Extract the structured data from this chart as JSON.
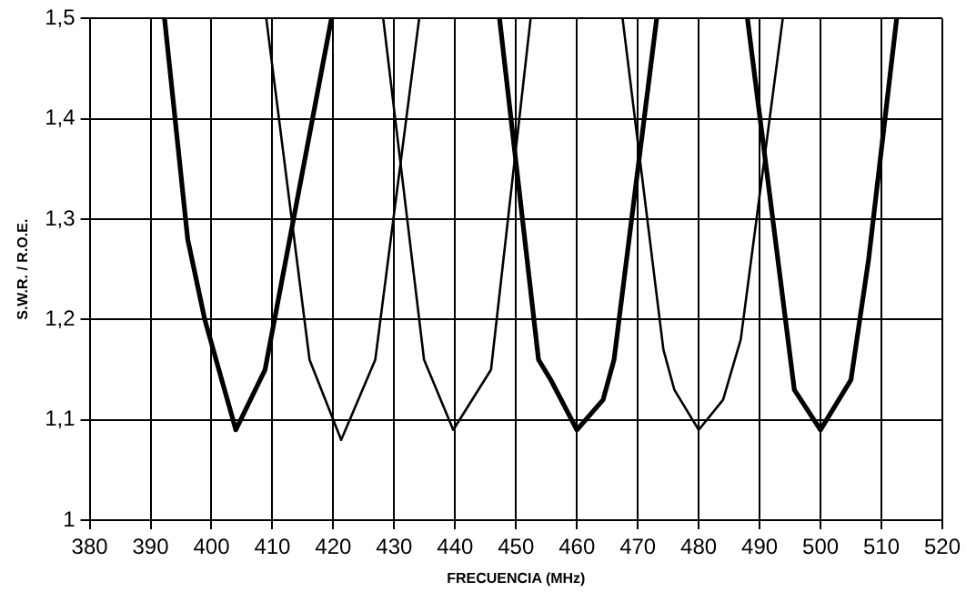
{
  "chart_data": {
    "type": "line",
    "xlabel": "FRECUENCIA (MHz)",
    "ylabel": "S.W.R. / R.O.E.",
    "xlim": [
      380,
      520
    ],
    "xticks": [
      380,
      390,
      400,
      410,
      420,
      430,
      440,
      450,
      460,
      470,
      480,
      490,
      500,
      510,
      520
    ],
    "ylim": [
      1,
      1.5
    ],
    "yticks": [
      {
        "value": 1,
        "label": "1"
      },
      {
        "value": 1.1,
        "label": "1,1"
      },
      {
        "value": 1.2,
        "label": "1,2"
      },
      {
        "value": 1.3,
        "label": "1,3"
      },
      {
        "value": 1.4,
        "label": "1,4"
      },
      {
        "value": 1.5,
        "label": "1,5"
      }
    ],
    "grid": true,
    "legend": false,
    "marker": "none",
    "line_style": "solid",
    "series": [
      {
        "color": "#000000",
        "x": [
          392.3,
          396.1,
          398.9,
          404.0,
          408.8,
          419.7
        ],
        "values": [
          1.5,
          1.28,
          1.2,
          1.09,
          1.15,
          1.5
        ]
      },
      {
        "color": "#000000",
        "x": [
          409.0,
          416.1,
          421.3,
          426.9,
          434.1
        ],
        "values": [
          1.5,
          1.16,
          1.08,
          1.16,
          1.5
        ]
      },
      {
        "color": "#000000",
        "x": [
          428.2,
          434.9,
          439.7,
          445.9,
          452.4
        ],
        "values": [
          1.5,
          1.16,
          1.09,
          1.15,
          1.5
        ]
      },
      {
        "color": "#000000",
        "x": [
          447.3,
          453.7,
          455.7,
          460.0,
          464.3,
          466.1,
          473.1
        ],
        "values": [
          1.5,
          1.16,
          1.14,
          1.09,
          1.12,
          1.16,
          1.5
        ]
      },
      {
        "color": "#000000",
        "x": [
          467.5,
          474.2,
          476.0,
          480.0,
          484.0,
          486.9,
          493.8
        ],
        "values": [
          1.5,
          1.17,
          1.13,
          1.09,
          1.12,
          1.18,
          1.5
        ]
      },
      {
        "color": "#000000",
        "x": [
          488.0,
          495.7,
          500.0,
          505.0,
          507.9,
          512.5
        ],
        "values": [
          1.5,
          1.13,
          1.09,
          1.14,
          1.26,
          1.5
        ]
      }
    ]
  }
}
